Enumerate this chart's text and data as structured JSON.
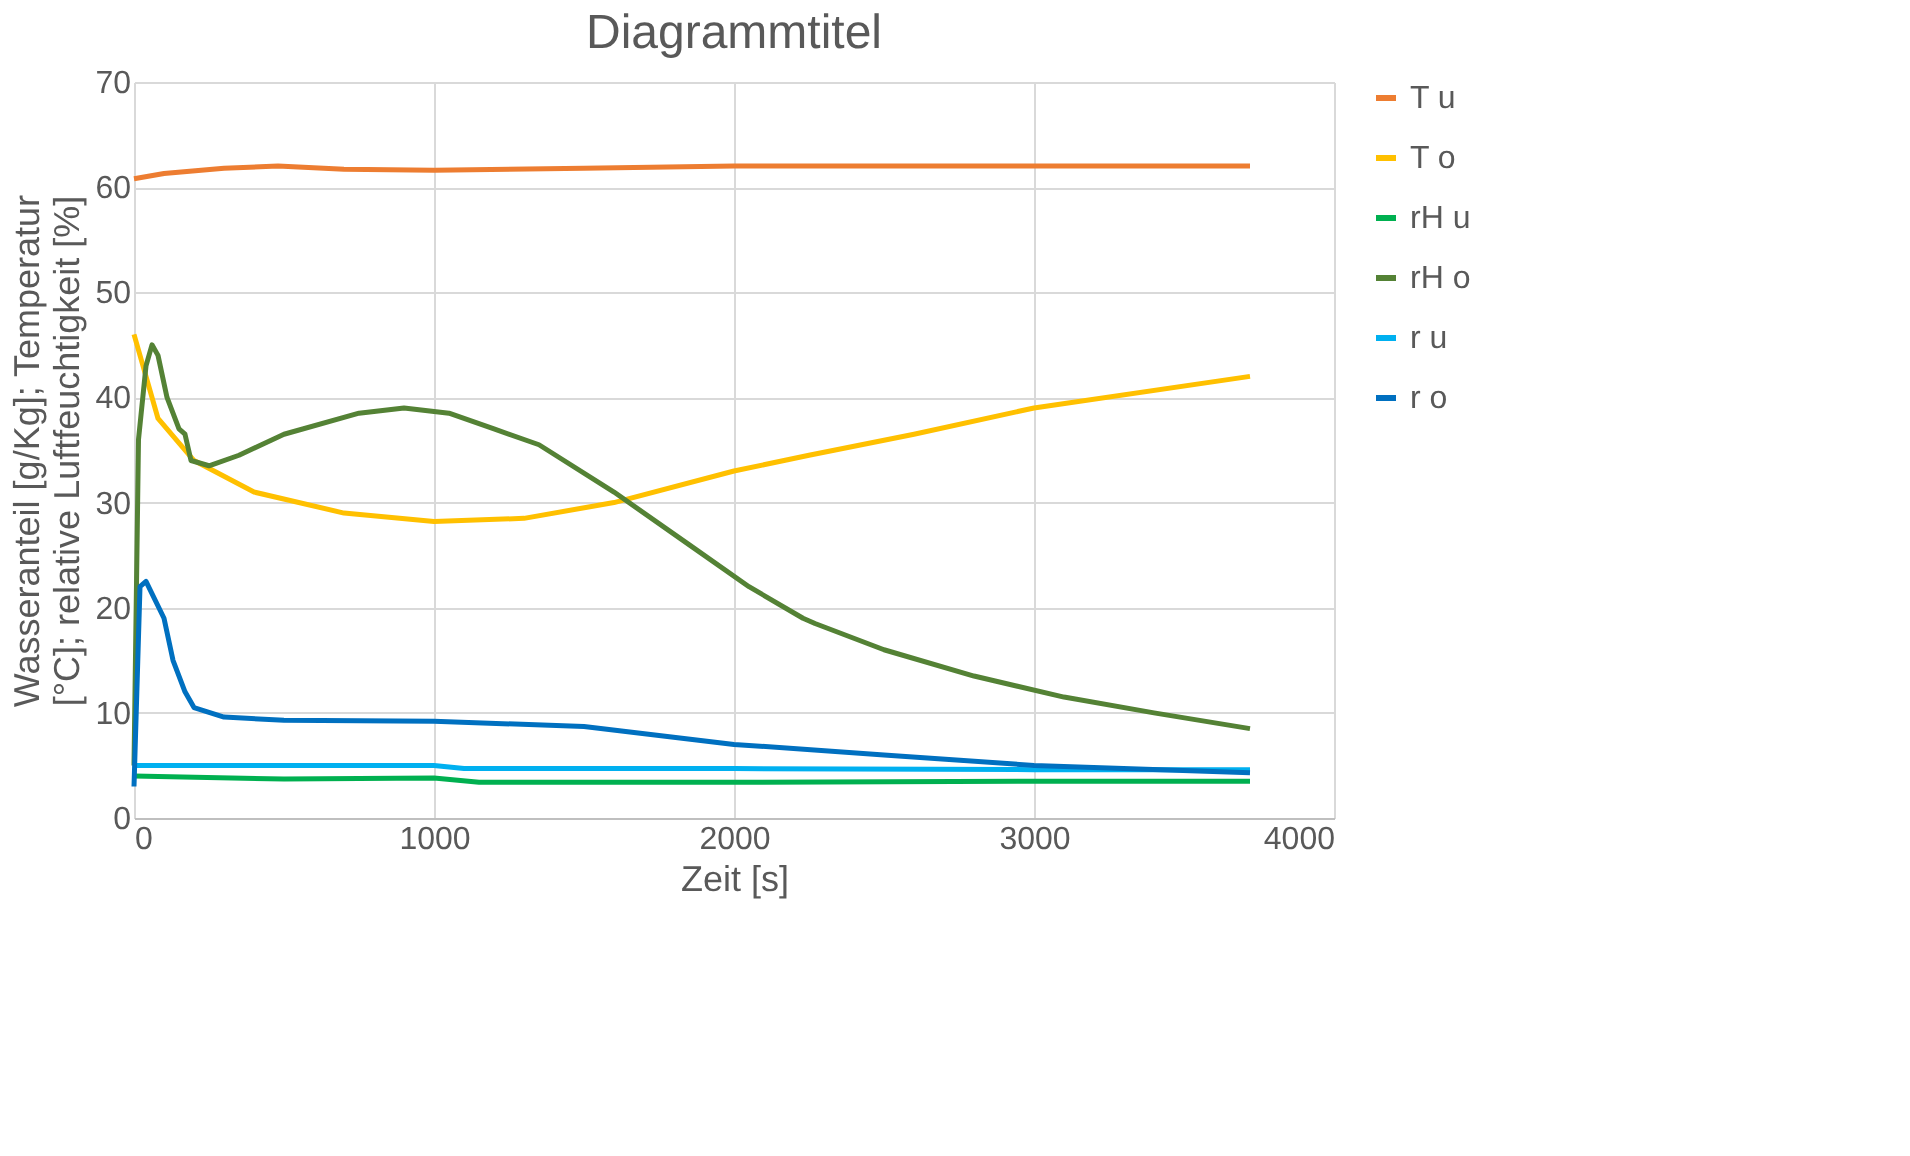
{
  "chart_data": {
    "type": "line",
    "title": "Diagrammtitel",
    "xlabel": "Zeit [s]",
    "ylabel": "Wasseranteil [g/Kg]; Temperatur [°C]; relative Luftfeuchtigkeit [%]",
    "xlim": [
      0,
      4000
    ],
    "xticks": [
      0,
      1000,
      2000,
      3000,
      4000
    ],
    "ylim": [
      0,
      70
    ],
    "yticks": [
      0,
      10,
      20,
      30,
      40,
      50,
      60,
      70
    ],
    "grid": true,
    "legend": "right",
    "marker": "none",
    "line_style": "solid",
    "series": [
      {
        "name": "T u",
        "color": "#ed7d31",
        "x": [
          0,
          100,
          300,
          480,
          700,
          1000,
          1500,
          2000,
          2500,
          3000,
          3720
        ],
        "values": [
          60.8,
          61.3,
          61.8,
          62,
          61.7,
          61.6,
          61.8,
          62,
          62,
          62,
          62
        ]
      },
      {
        "name": "T o",
        "color": "#ffc000",
        "x": [
          0,
          30,
          80,
          200,
          400,
          700,
          1000,
          1300,
          1600,
          2000,
          2250,
          2600,
          3000,
          3720
        ],
        "values": [
          46,
          43,
          38,
          34,
          31,
          29,
          28.2,
          28.5,
          30,
          33,
          34.5,
          36.5,
          39,
          42
        ]
      },
      {
        "name": "rH u",
        "color": "#00b050",
        "x": [
          0,
          500,
          1000,
          1150,
          2000,
          3000,
          3720
        ],
        "values": [
          4,
          3.7,
          3.8,
          3.4,
          3.4,
          3.5,
          3.5
        ]
      },
      {
        "name": "rH o",
        "color": "#548235",
        "x": [
          0,
          15,
          40,
          60,
          80,
          110,
          150,
          170,
          190,
          250,
          350,
          500,
          750,
          900,
          1050,
          1200,
          1350,
          1600,
          1850,
          2050,
          2230,
          2270,
          2500,
          2800,
          3100,
          3400,
          3720
        ],
        "values": [
          5,
          36,
          43,
          45,
          44,
          40,
          37,
          36.5,
          34,
          33.5,
          34.5,
          36.5,
          38.5,
          39,
          38.5,
          37,
          35.5,
          31,
          26,
          22,
          19,
          18.5,
          16,
          13.5,
          11.5,
          10,
          8.5
        ]
      },
      {
        "name": "r u",
        "color": "#00b0f0",
        "x": [
          0,
          1000,
          1100,
          2000,
          3000,
          3720
        ],
        "values": [
          5,
          5,
          4.7,
          4.7,
          4.6,
          4.6
        ]
      },
      {
        "name": "r o",
        "color": "#0070c0",
        "x": [
          0,
          20,
          40,
          100,
          130,
          170,
          200,
          300,
          500,
          1000,
          1500,
          2000,
          2500,
          3000,
          3720
        ],
        "values": [
          3,
          22,
          22.5,
          19,
          15,
          12,
          10.5,
          9.6,
          9.3,
          9.2,
          8.7,
          7,
          6,
          5,
          4.3
        ]
      }
    ]
  }
}
